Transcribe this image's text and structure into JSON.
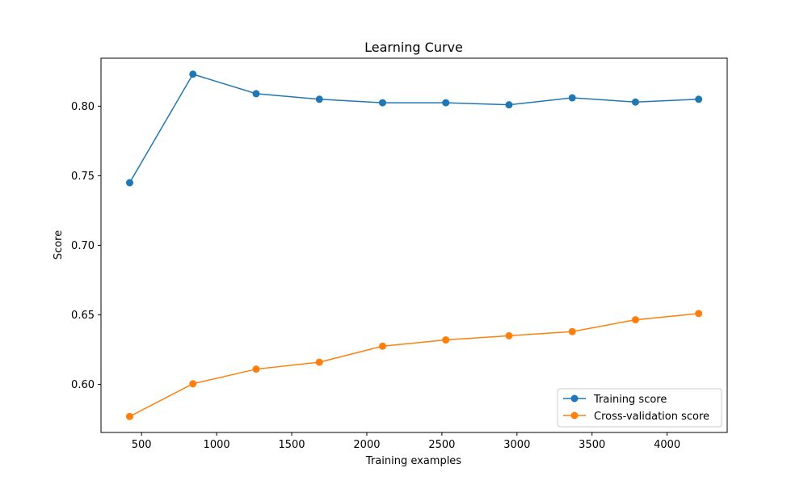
{
  "chart_data": {
    "type": "line",
    "title": "Learning Curve",
    "xlabel": "Training examples",
    "ylabel": "Score",
    "x": [
      421,
      842,
      1263,
      1684,
      2105,
      2526,
      2947,
      3368,
      3789,
      4210
    ],
    "series": [
      {
        "name": "Training score",
        "color": "#1f77b4",
        "values": [
          0.745,
          0.823,
          0.809,
          0.805,
          0.8025,
          0.8025,
          0.801,
          0.806,
          0.803,
          0.805
        ]
      },
      {
        "name": "Cross-validation score",
        "color": "#ff7f0e",
        "values": [
          0.577,
          0.6005,
          0.611,
          0.616,
          0.6275,
          0.632,
          0.635,
          0.638,
          0.6465,
          0.651
        ]
      }
    ],
    "xlim": [
      230,
      4400
    ],
    "ylim": [
      0.5655,
      0.8345
    ],
    "xticks": [
      500,
      1000,
      1500,
      2000,
      2500,
      3000,
      3500,
      4000
    ],
    "xtick_labels": [
      "500",
      "1000",
      "1500",
      "2000",
      "2500",
      "3000",
      "3500",
      "4000"
    ],
    "yticks": [
      0.6,
      0.65,
      0.7,
      0.75,
      0.8
    ],
    "ytick_labels": [
      "0.60",
      "0.65",
      "0.70",
      "0.75",
      "0.80"
    ],
    "grid": false,
    "legend_position": "lower-right",
    "marker": "circle"
  }
}
